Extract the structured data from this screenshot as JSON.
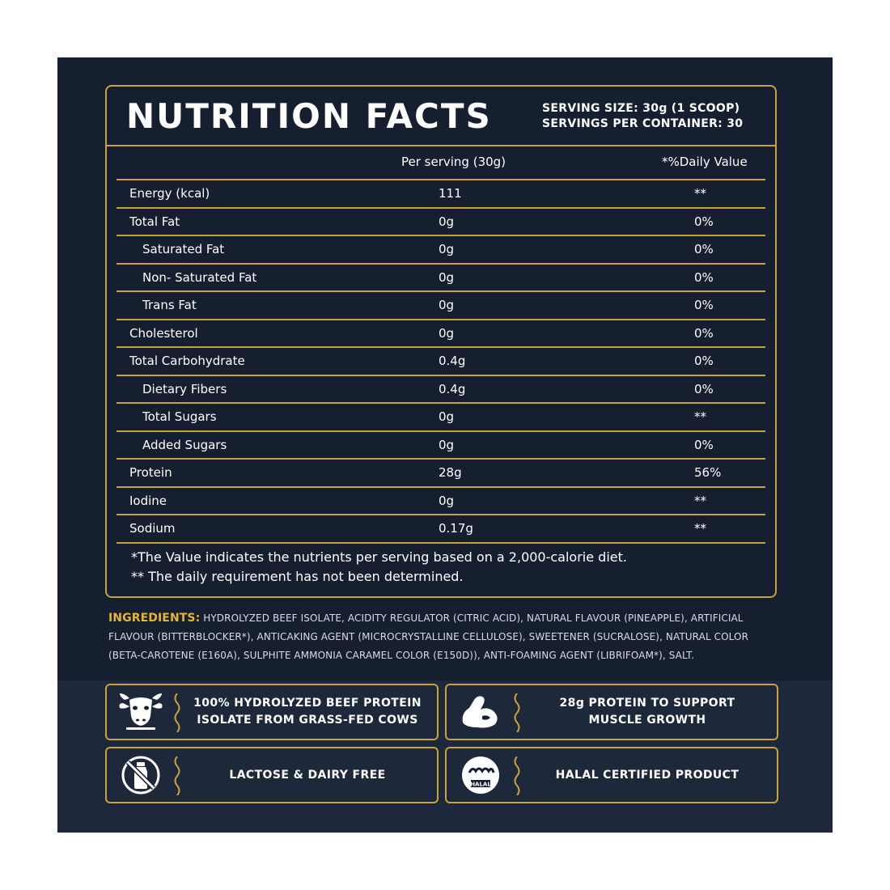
{
  "header": {
    "title": "NUTRITION FACTS",
    "serving_size": "SERVING SIZE: 30g (1 SCOOP)",
    "servings_per_container": "SERVINGS PER CONTAINER: 30"
  },
  "columns": {
    "per_serving": "Per serving (30g)",
    "daily_value": "*%Daily Value"
  },
  "rows": [
    {
      "label": "Energy (kcal)",
      "amount": "111",
      "dv": "**"
    },
    {
      "label": "Total Fat",
      "amount": "0g",
      "dv": "0%"
    },
    {
      "label": "Saturated Fat",
      "amount": "0g",
      "dv": "0%"
    },
    {
      "label": "Non- Saturated Fat",
      "amount": "0g",
      "dv": "0%"
    },
    {
      "label": "Trans Fat",
      "amount": "0g",
      "dv": "0%"
    },
    {
      "label": "Cholesterol",
      "amount": "0g",
      "dv": "0%"
    },
    {
      "label": "Total Carbohydrate",
      "amount": "0.4g",
      "dv": "0%"
    },
    {
      "label": "Dietary Fibers",
      "amount": "0.4g",
      "dv": "0%"
    },
    {
      "label": "Total Sugars",
      "amount": "0g",
      "dv": "**"
    },
    {
      "label": "Added Sugars",
      "amount": "0g",
      "dv": "0%"
    },
    {
      "label": "Protein",
      "amount": "28g",
      "dv": "56%"
    },
    {
      "label": "Iodine",
      "amount": "0g",
      "dv": "**"
    },
    {
      "label": "Sodium",
      "amount": "0.17g",
      "dv": "**"
    }
  ],
  "notes": {
    "line1": "*The Value indicates the nutrients per serving based on a 2,000-calorie diet.",
    "line2": "** The daily requirement has not been determined."
  },
  "ingredients": {
    "label": "INGREDIENTS:",
    "text": "HYDROLYZED BEEF ISOLATE, ACIDITY REGULATOR (CITRIC ACID), NATURAL FLAVOUR (PINEAPPLE), ARTIFICIAL FLAVOUR (BITTERBLOCKER*), ANTICAKING AGENT (MICROCRYSTALLINE CELLULOSE), SWEETENER (SUCRALOSE), NATURAL COLOR (BETA-CAROTENE (E160A), SULPHITE AMMONIA CARAMEL COLOR (E150D)), ANTI-FOAMING AGENT (LIBRIFOAM*), SALT."
  },
  "features": [
    {
      "icon": "cow-icon",
      "line1": "100% HYDROLYZED BEEF PROTEIN",
      "line2": "ISOLATE FROM GRASS-FED COWS"
    },
    {
      "icon": "flexed-arm-icon",
      "line1": "28g PROTEIN TO SUPPORT",
      "line2": "MUSCLE GROWTH"
    },
    {
      "icon": "no-dairy-icon",
      "line1": "LACTOSE & DAIRY FREE",
      "line2": ""
    },
    {
      "icon": "halal-icon",
      "line1": "HALAL CERTIFIED PRODUCT",
      "line2": "",
      "badge_text": "HALAL"
    }
  ],
  "colors": {
    "panel": "#161f30",
    "accent_gold": "#c9a23b",
    "ingredient_label": "#e8b62c",
    "text": "#ffffff"
  }
}
